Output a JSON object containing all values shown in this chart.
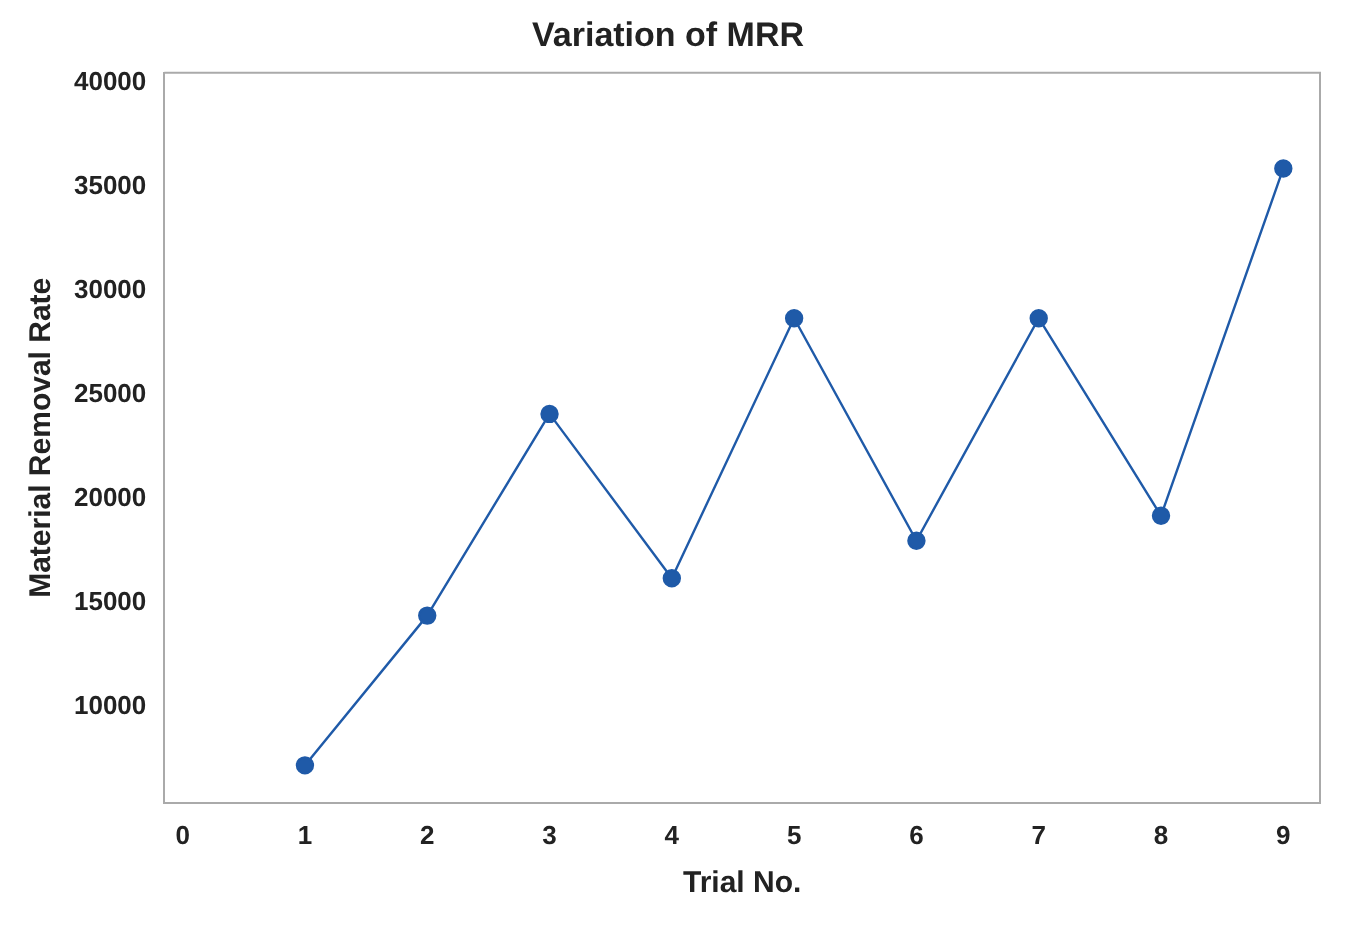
{
  "chart_data": {
    "type": "line",
    "title": "Variation of MRR",
    "xlabel": "Trial No.",
    "ylabel": "Material Removal Rate",
    "x": [
      1,
      2,
      3,
      4,
      5,
      6,
      7,
      8,
      9
    ],
    "series": [
      {
        "color": "#1f5aa8",
        "values": [
          7200,
          14400,
          24100,
          16200,
          28700,
          18000,
          28700,
          19200,
          35900
        ]
      }
    ],
    "xlim": [
      -0.15,
      9.3
    ],
    "xticks": [
      0,
      1,
      2,
      3,
      4,
      5,
      6,
      7,
      8,
      9
    ],
    "ylim": [
      5400,
      40500
    ],
    "yticks": [
      10000,
      15000,
      20000,
      25000,
      30000,
      35000,
      40000
    ],
    "grid": false,
    "legend": false,
    "marker": "circle",
    "line_style": "solid"
  }
}
